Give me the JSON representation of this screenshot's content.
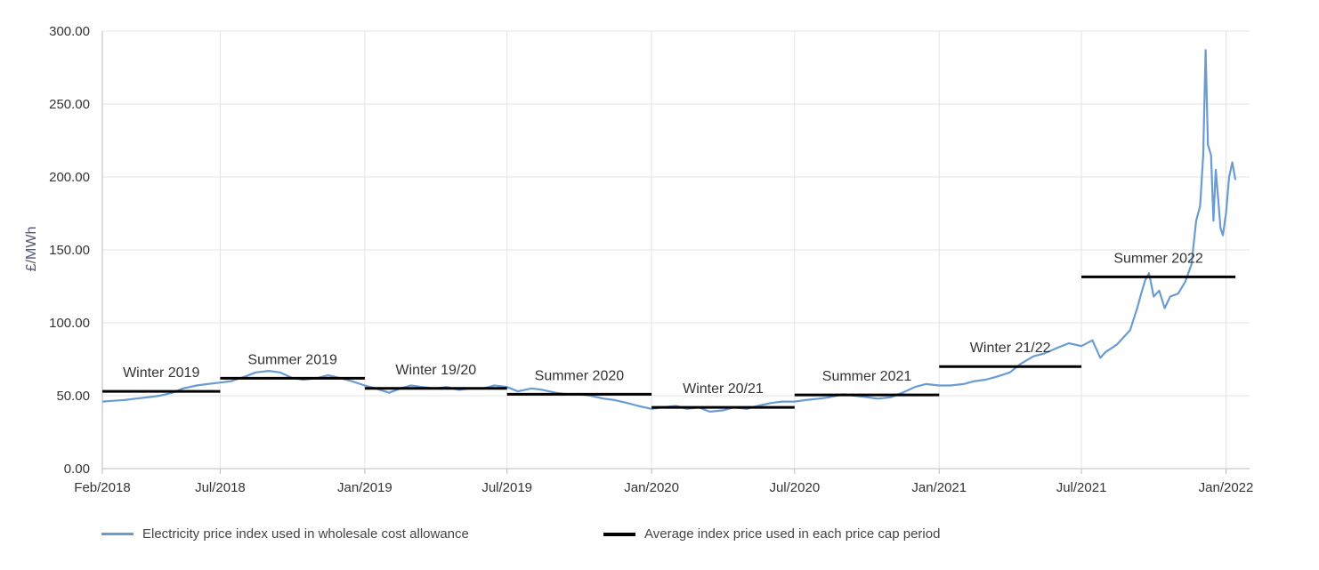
{
  "chart_data": {
    "type": "line",
    "title": "",
    "xlabel": "",
    "ylabel": "£/MWh",
    "ylim": [
      0,
      300
    ],
    "y_ticks": [
      "0.00",
      "50.00",
      "100.00",
      "150.00",
      "200.00",
      "250.00",
      "300.00"
    ],
    "x_range": [
      "2018-02-01",
      "2022-01-31"
    ],
    "x_ticks": [
      {
        "date": "2018-02-01",
        "label": "Feb/2018"
      },
      {
        "date": "2018-07-01",
        "label": "Jul/2018"
      },
      {
        "date": "2019-01-01",
        "label": "Jan/2019"
      },
      {
        "date": "2019-07-01",
        "label": "Jul/2019"
      },
      {
        "date": "2020-01-01",
        "label": "Jan/2020"
      },
      {
        "date": "2020-07-01",
        "label": "Jul/2020"
      },
      {
        "date": "2021-01-01",
        "label": "Jan/2021"
      },
      {
        "date": "2021-07-01",
        "label": "Jul/2021"
      },
      {
        "date": "2022-01-01",
        "label": "Jan/2022"
      }
    ],
    "grid": true,
    "legend_position": "bottom",
    "series": [
      {
        "name": "Electricity price index used in wholesale cost allowance",
        "color": "#6a9bd1",
        "points": [
          [
            "2018-02-01",
            46
          ],
          [
            "2018-02-15",
            46.5
          ],
          [
            "2018-03-01",
            47
          ],
          [
            "2018-03-15",
            48
          ],
          [
            "2018-04-01",
            49
          ],
          [
            "2018-04-15",
            50
          ],
          [
            "2018-05-01",
            52
          ],
          [
            "2018-05-15",
            55
          ],
          [
            "2018-06-01",
            57
          ],
          [
            "2018-06-15",
            58
          ],
          [
            "2018-07-01",
            59
          ],
          [
            "2018-07-15",
            60
          ],
          [
            "2018-08-01",
            63
          ],
          [
            "2018-08-15",
            66
          ],
          [
            "2018-09-01",
            67
          ],
          [
            "2018-09-15",
            66
          ],
          [
            "2018-10-01",
            62
          ],
          [
            "2018-10-15",
            61
          ],
          [
            "2018-11-01",
            62
          ],
          [
            "2018-11-15",
            64
          ],
          [
            "2018-12-01",
            62
          ],
          [
            "2018-12-15",
            60
          ],
          [
            "2019-01-01",
            57
          ],
          [
            "2019-01-15",
            55
          ],
          [
            "2019-02-01",
            52
          ],
          [
            "2019-02-15",
            55
          ],
          [
            "2019-03-01",
            57
          ],
          [
            "2019-03-15",
            56
          ],
          [
            "2019-04-01",
            55
          ],
          [
            "2019-04-15",
            56
          ],
          [
            "2019-05-01",
            54
          ],
          [
            "2019-05-15",
            55
          ],
          [
            "2019-06-01",
            55
          ],
          [
            "2019-06-15",
            57
          ],
          [
            "2019-07-01",
            56
          ],
          [
            "2019-07-15",
            53
          ],
          [
            "2019-08-01",
            55
          ],
          [
            "2019-08-15",
            54
          ],
          [
            "2019-09-01",
            52
          ],
          [
            "2019-09-15",
            51
          ],
          [
            "2019-10-01",
            51
          ],
          [
            "2019-10-15",
            50
          ],
          [
            "2019-11-01",
            48
          ],
          [
            "2019-11-15",
            47
          ],
          [
            "2019-12-01",
            45
          ],
          [
            "2019-12-15",
            43
          ],
          [
            "2020-01-01",
            41
          ],
          [
            "2020-01-15",
            42
          ],
          [
            "2020-02-01",
            43
          ],
          [
            "2020-02-15",
            41
          ],
          [
            "2020-03-01",
            42
          ],
          [
            "2020-03-15",
            39
          ],
          [
            "2020-04-01",
            40
          ],
          [
            "2020-04-15",
            42
          ],
          [
            "2020-05-01",
            41
          ],
          [
            "2020-05-15",
            43
          ],
          [
            "2020-06-01",
            45
          ],
          [
            "2020-06-15",
            46
          ],
          [
            "2020-07-01",
            46
          ],
          [
            "2020-07-15",
            47
          ],
          [
            "2020-08-01",
            48
          ],
          [
            "2020-08-15",
            49
          ],
          [
            "2020-09-01",
            51
          ],
          [
            "2020-09-15",
            50
          ],
          [
            "2020-10-01",
            49
          ],
          [
            "2020-10-15",
            48
          ],
          [
            "2020-11-01",
            49
          ],
          [
            "2020-11-15",
            52
          ],
          [
            "2020-12-01",
            56
          ],
          [
            "2020-12-15",
            58
          ],
          [
            "2021-01-01",
            57
          ],
          [
            "2021-01-15",
            57
          ],
          [
            "2021-02-01",
            58
          ],
          [
            "2021-02-15",
            60
          ],
          [
            "2021-03-01",
            61
          ],
          [
            "2021-03-15",
            63
          ],
          [
            "2021-04-01",
            66
          ],
          [
            "2021-04-15",
            72
          ],
          [
            "2021-05-01",
            77
          ],
          [
            "2021-05-15",
            79
          ],
          [
            "2021-06-01",
            83
          ],
          [
            "2021-06-15",
            86
          ],
          [
            "2021-07-01",
            84
          ],
          [
            "2021-07-15",
            88
          ],
          [
            "2021-07-25",
            76
          ],
          [
            "2021-08-01",
            80
          ],
          [
            "2021-08-15",
            85
          ],
          [
            "2021-09-01",
            95
          ],
          [
            "2021-09-10",
            110
          ],
          [
            "2021-09-15",
            120
          ],
          [
            "2021-09-20",
            129
          ],
          [
            "2021-09-25",
            134
          ],
          [
            "2021-10-01",
            118
          ],
          [
            "2021-10-08",
            122
          ],
          [
            "2021-10-15",
            110
          ],
          [
            "2021-10-22",
            118
          ],
          [
            "2021-11-01",
            120
          ],
          [
            "2021-11-10",
            128
          ],
          [
            "2021-11-18",
            140
          ],
          [
            "2021-11-24",
            170
          ],
          [
            "2021-11-29",
            180
          ],
          [
            "2021-12-03",
            215
          ],
          [
            "2021-12-06",
            287
          ],
          [
            "2021-12-09",
            222
          ],
          [
            "2021-12-13",
            215
          ],
          [
            "2021-12-16",
            170
          ],
          [
            "2021-12-19",
            205
          ],
          [
            "2021-12-22",
            185
          ],
          [
            "2021-12-25",
            165
          ],
          [
            "2021-12-28",
            160
          ],
          [
            "2022-01-01",
            175
          ],
          [
            "2022-01-05",
            200
          ],
          [
            "2022-01-09",
            210
          ],
          [
            "2022-01-13",
            198
          ]
        ]
      },
      {
        "name": "Average index price used in each price cap period",
        "color": "#000000",
        "segments": [
          {
            "label": "Winter 2019",
            "start": "2018-02-01",
            "end": "2018-07-01",
            "value": 53
          },
          {
            "label": "Summer 2019",
            "start": "2018-07-01",
            "end": "2019-01-01",
            "value": 62
          },
          {
            "label": "Winter 19/20",
            "start": "2019-01-01",
            "end": "2019-07-01",
            "value": 55
          },
          {
            "label": "Summer 2020",
            "start": "2019-07-01",
            "end": "2020-01-01",
            "value": 51
          },
          {
            "label": "Winter 20/21",
            "start": "2020-01-01",
            "end": "2020-07-01",
            "value": 42
          },
          {
            "label": "Summer 2021",
            "start": "2020-07-01",
            "end": "2021-01-01",
            "value": 50.5
          },
          {
            "label": "Winter 21/22",
            "start": "2021-01-01",
            "end": "2021-07-01",
            "value": 70
          },
          {
            "label": "Summer 2022",
            "start": "2021-07-01",
            "end": "2022-01-13",
            "value": 131.5
          }
        ]
      }
    ]
  }
}
